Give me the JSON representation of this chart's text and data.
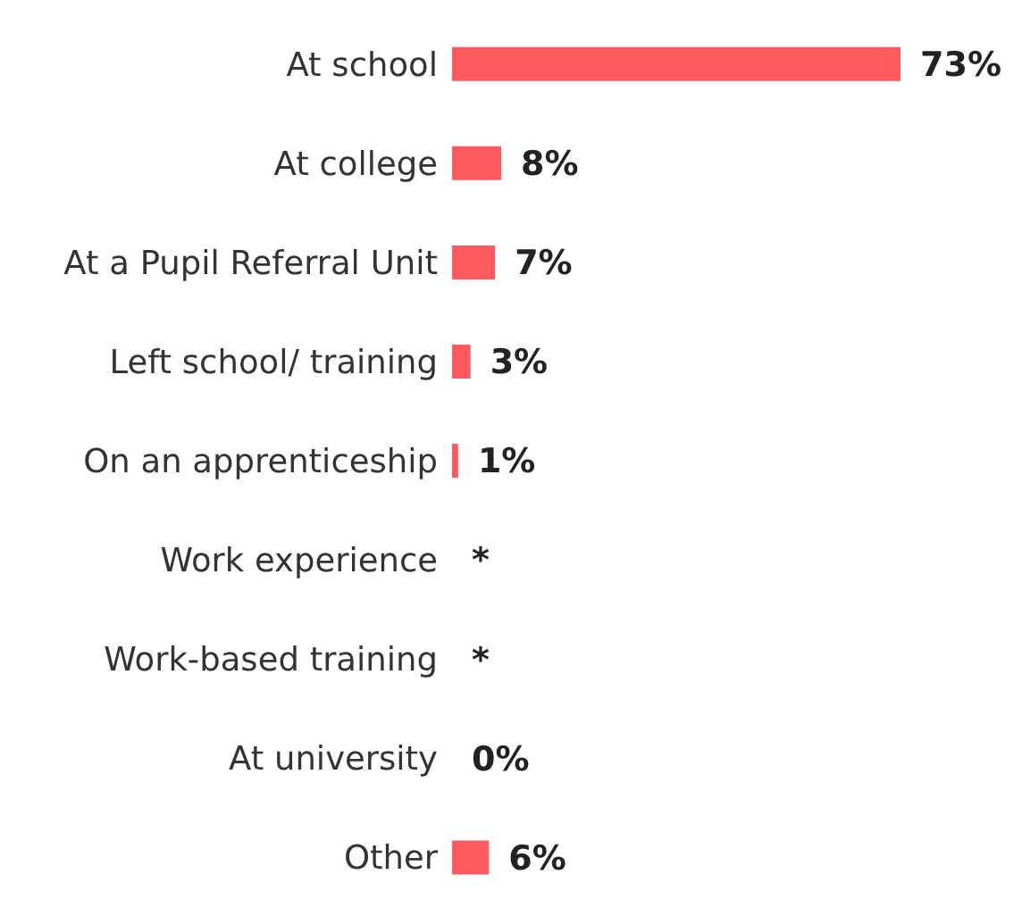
{
  "chart_data": {
    "type": "bar",
    "orientation": "horizontal",
    "categories": [
      "At school",
      "At college",
      "At a Pupil Referral Unit",
      "Left school/ training",
      "On an apprenticeship",
      "Work experience",
      "Work-based training",
      "At university",
      "Other"
    ],
    "values": [
      73,
      8,
      7,
      3,
      1,
      null,
      null,
      0,
      6
    ],
    "value_labels": [
      "73%",
      "8%",
      "7%",
      "3%",
      "1%",
      "*",
      "*",
      "0%",
      "6%"
    ],
    "color": "#ff5a5f"
  }
}
